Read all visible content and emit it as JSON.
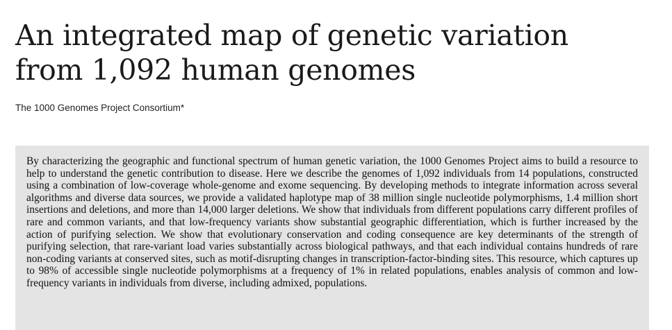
{
  "article": {
    "title_line1": "An integrated map of genetic variation",
    "title_line2": "from 1,092 human genomes",
    "authors": "The 1000 Genomes Project Consortium*",
    "abstract": "By characterizing the geographic and functional spectrum of human genetic variation, the 1000 Genomes Project aims to build a resource to help to understand the genetic contribution to disease. Here we describe the genomes of 1,092 individuals from 14 populations, constructed using a combination of low-coverage whole-genome and exome sequencing. By developing methods to integrate information across several algorithms and diverse data sources, we provide a validated haplotype map of 38 million single nucleotide polymorphisms, 1.4 million short insertions and deletions, and more than 14,000 larger deletions. We show that individuals from different populations carry different profiles of rare and common variants, and that low-frequency variants show substantial geographic differentiation, which is further increased by the action of purifying selection. We show that evolutionary conservation and coding consequence are key determinants of the strength of purifying selection, that rare-variant load varies substantially across biological pathways, and that each individual contains hundreds of rare non-coding variants at conserved sites, such as motif-disrupting changes in transcription-factor-binding sites. This resource, which captures up to 98% of accessible single nucleotide polymorphisms at a frequency of 1% in related populations, enables analysis of common and low-frequency variants in individuals from diverse, including admixed, populations."
  },
  "colors": {
    "abstract_background": "#e4e4e4",
    "text": "#1a1a1a"
  }
}
